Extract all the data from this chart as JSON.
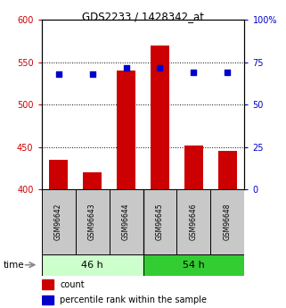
{
  "title": "GDS2233 / 1428342_at",
  "samples": [
    "GSM96642",
    "GSM96643",
    "GSM96644",
    "GSM96645",
    "GSM96646",
    "GSM96648"
  ],
  "counts": [
    435,
    420,
    540,
    570,
    452,
    445
  ],
  "percentiles": [
    68,
    68,
    72,
    72,
    69,
    69
  ],
  "bar_color": "#cc0000",
  "dot_color": "#0000cc",
  "bar_bottom": 400,
  "ylim_left": [
    400,
    600
  ],
  "ylim_right": [
    0,
    100
  ],
  "yticks_left": [
    400,
    450,
    500,
    550,
    600
  ],
  "yticks_right": [
    0,
    25,
    50,
    75,
    100
  ],
  "grid_yticks": [
    450,
    500,
    550
  ],
  "group_colors": [
    "#ccffcc",
    "#33cc33"
  ],
  "group_labels": [
    "46 h",
    "54 h"
  ],
  "group_ranges": [
    [
      0,
      3
    ],
    [
      3,
      6
    ]
  ],
  "label_bg": "#c8c8c8",
  "legend_count_label": "count",
  "legend_pct_label": "percentile rank within the sample",
  "time_label": "time"
}
